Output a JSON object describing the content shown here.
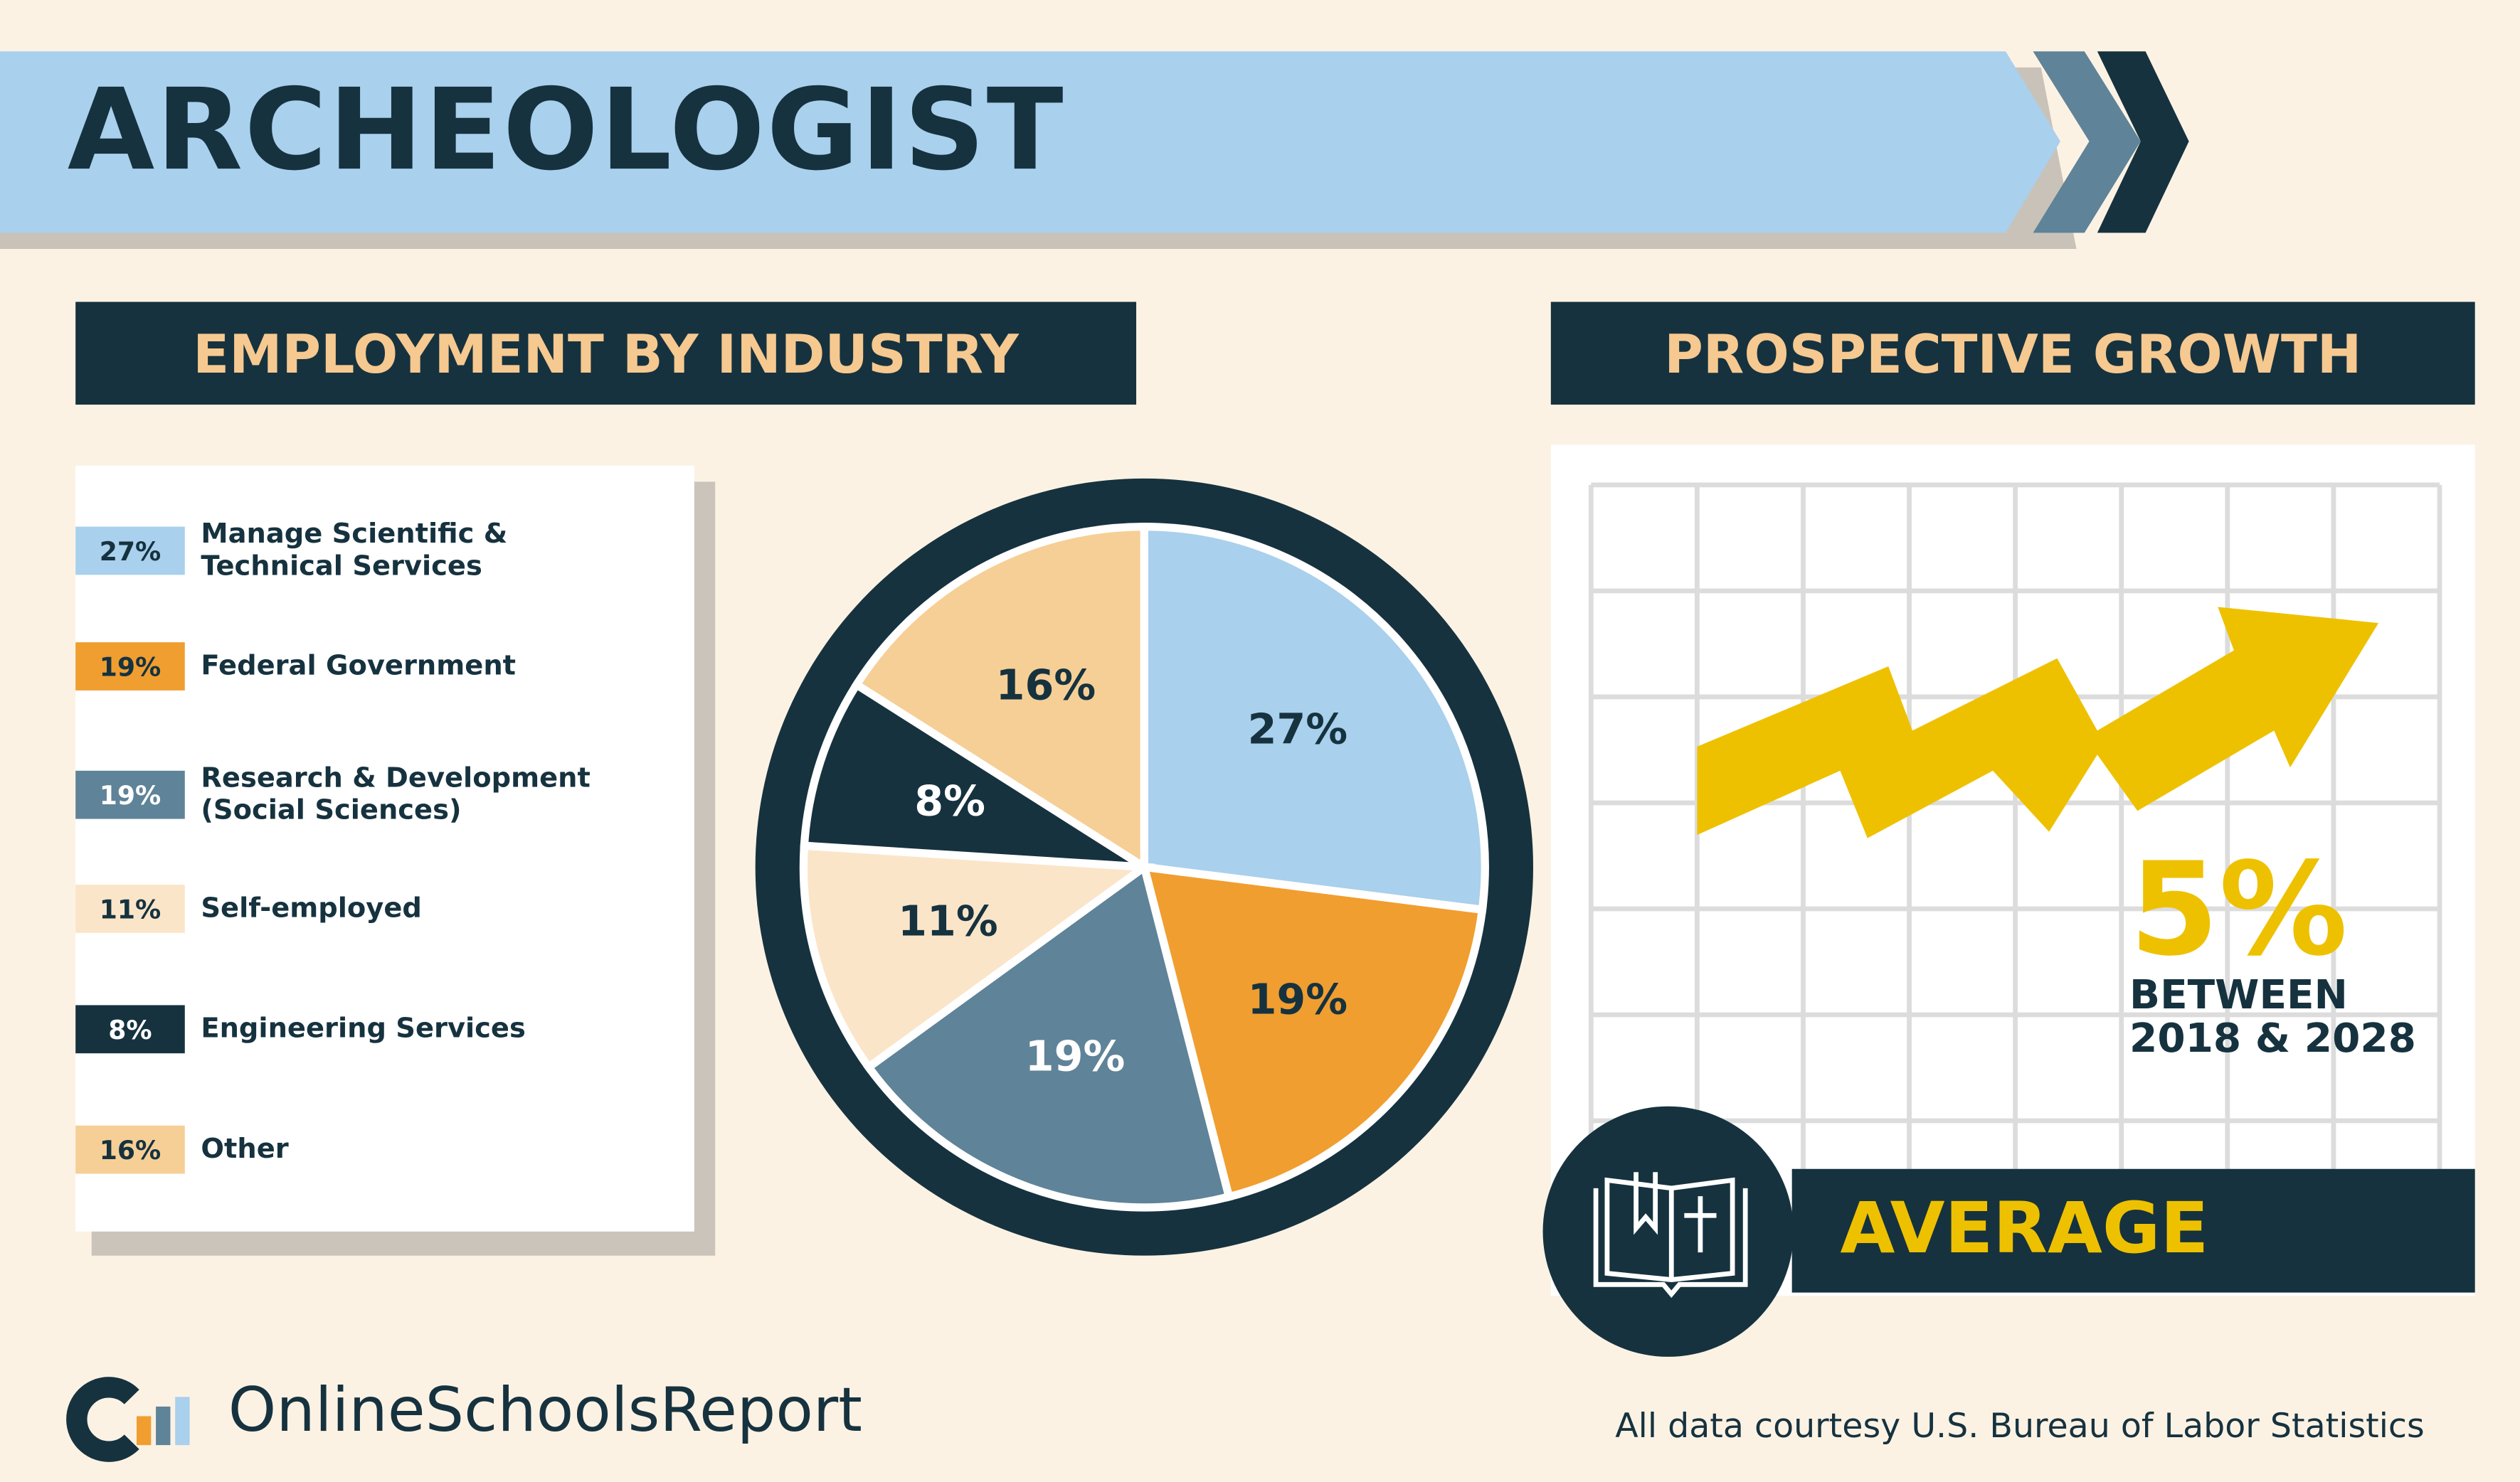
{
  "header": {
    "title": "ARCHEOLOGIST"
  },
  "chart_data": {
    "type": "pie",
    "title": "EMPLOYMENT BY INDUSTRY",
    "categories": [
      "Manage Scientific & Technical Services",
      "Federal Government",
      "Research & Development (Social Sciences)",
      "Self-employed",
      "Engineering Services",
      "Other"
    ],
    "values": [
      27,
      19,
      19,
      11,
      8,
      16
    ],
    "value_labels": [
      "27%",
      "19%",
      "19%",
      "11%",
      "8%",
      "16%"
    ],
    "colors": [
      "#a9d0ec",
      "#f09e30",
      "#5f8398",
      "#fbe5c9",
      "#16323f",
      "#f6cf96"
    ]
  },
  "growth": {
    "title": "PROSPECTIVE GROWTH",
    "value": "5%",
    "line1": "BETWEEN",
    "line2": "2018 & 2028",
    "rating": "AVERAGE"
  },
  "footer": {
    "brand": "OnlineSchoolsReport",
    "source": "All data courtesy U.S. Bureau of Labor Statistics"
  }
}
